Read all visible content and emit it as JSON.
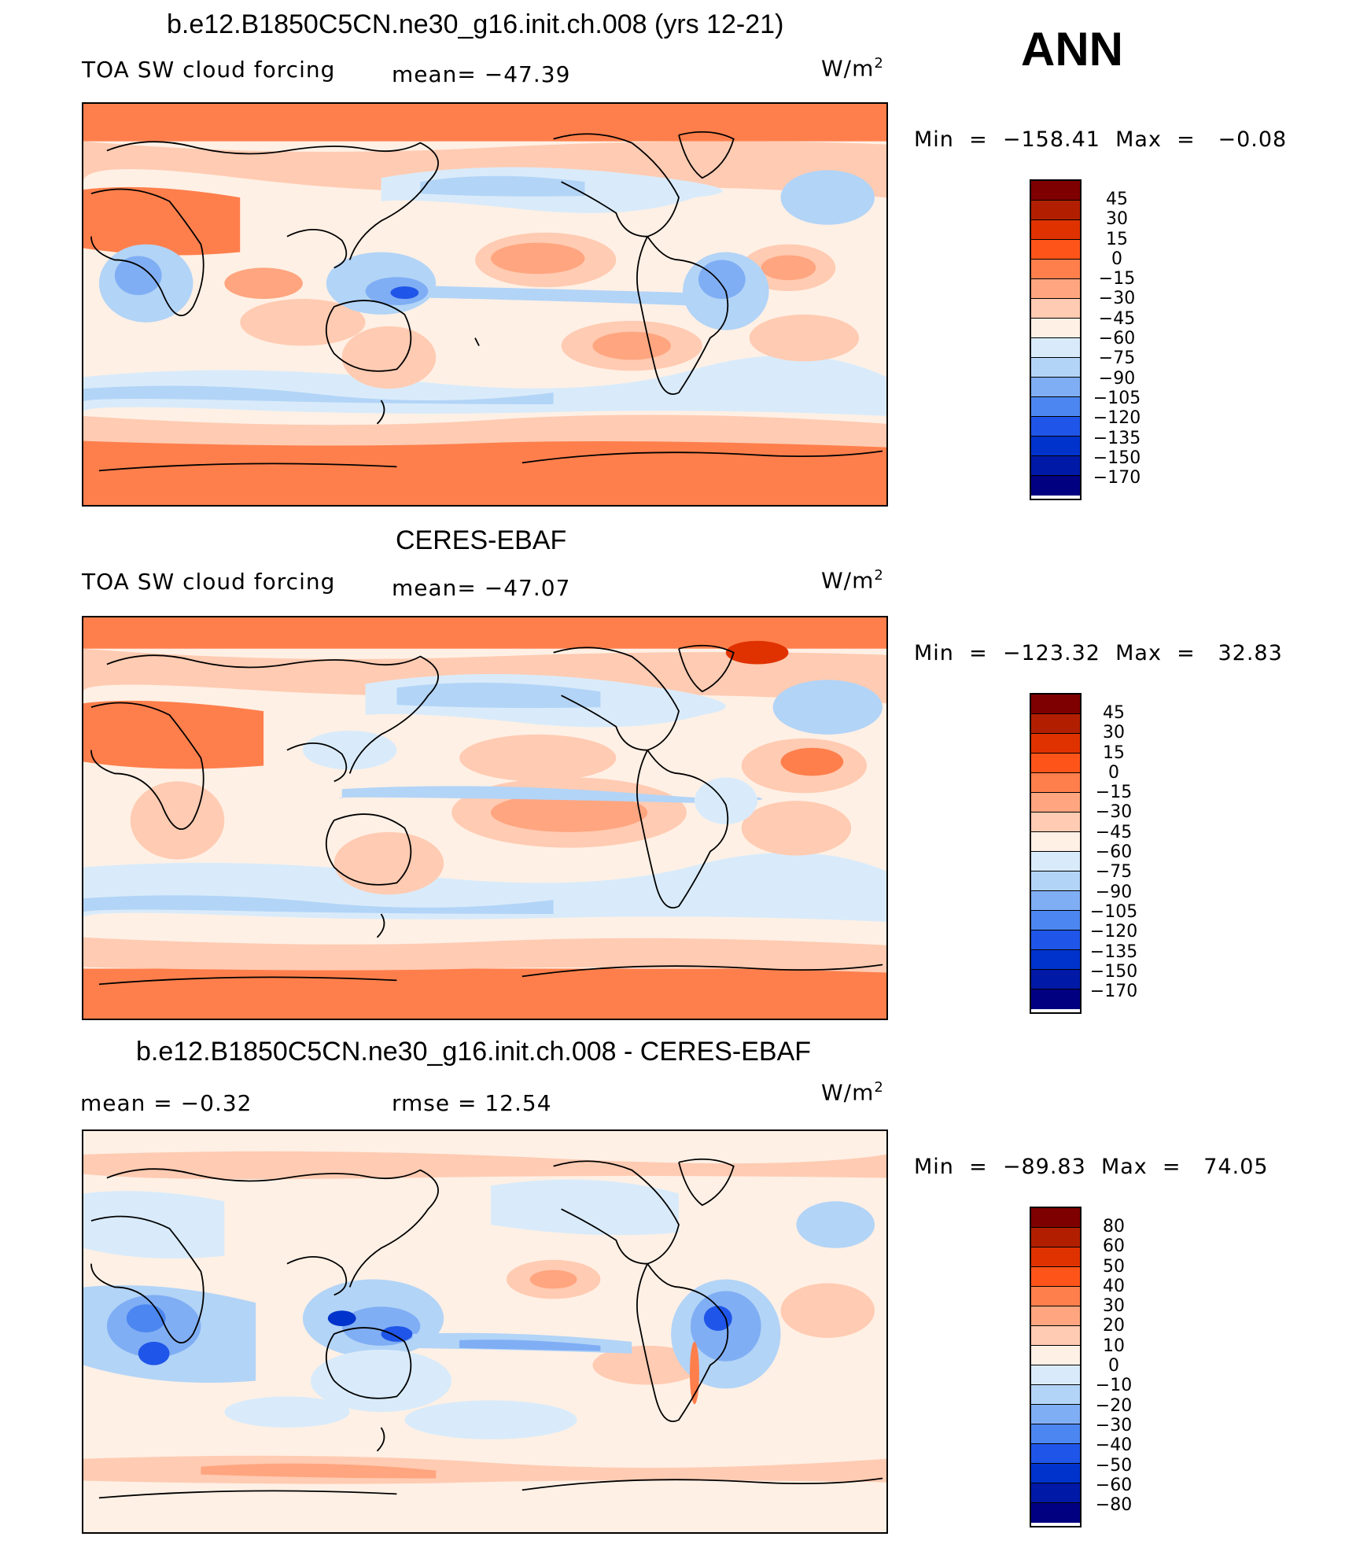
{
  "season": "ANN",
  "panels": [
    {
      "title": "b.e12.B1850C5CN.ne30_g16.init.ch.008 (yrs 12-21)",
      "left_label": "TOA SW cloud forcing",
      "center_label": "mean= −47.39",
      "units": "W/m",
      "units_exp": "2",
      "minmax": "Min  =  −158.41  Max  =   −0.08",
      "colorbar_labels": [
        "45",
        "30",
        "15",
        "0",
        "−15",
        "−30",
        "−45",
        "−60",
        "−75",
        "−90",
        "−105",
        "−120",
        "−135",
        "−150",
        "−170"
      ]
    },
    {
      "title": "CERES-EBAF",
      "left_label": "TOA SW cloud forcing",
      "center_label": "mean= −47.07",
      "units": "W/m",
      "units_exp": "2",
      "minmax": "Min  =  −123.32  Max  =   32.83",
      "colorbar_labels": [
        "45",
        "30",
        "15",
        "0",
        "−15",
        "−30",
        "−45",
        "−60",
        "−75",
        "−90",
        "−105",
        "−120",
        "−135",
        "−150",
        "−170"
      ]
    },
    {
      "title": "b.e12.B1850C5CN.ne30_g16.init.ch.008 - CERES-EBAF",
      "left_label": "mean =   −0.32",
      "center_label": "rmse =   12.54",
      "units": "W/m",
      "units_exp": "2",
      "minmax": "Min  =  −89.83  Max  =   74.05",
      "colorbar_labels": [
        "80",
        "60",
        "50",
        "40",
        "30",
        "20",
        "10",
        "0",
        "−10",
        "−20",
        "−30",
        "−40",
        "−50",
        "−60",
        "−80"
      ]
    }
  ],
  "colorbar_colors": [
    "#7f0000",
    "#b21f00",
    "#e03200",
    "#ff5419",
    "#ff7f4c",
    "#ffa57f",
    "#ffcbb2",
    "#fff0e5",
    "#d9ebfa",
    "#b2d4f7",
    "#80aef4",
    "#4c86f0",
    "#1f55e8",
    "#0033cc",
    "#0019a6",
    "#000080"
  ]
}
